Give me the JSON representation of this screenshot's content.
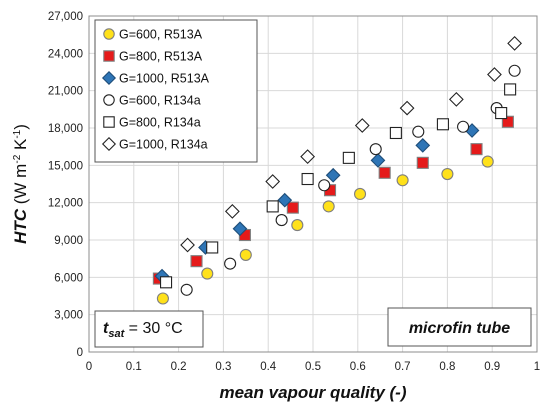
{
  "chart_data": {
    "type": "scatter",
    "xlabel": "mean vapour quality (-)",
    "ylabel": {
      "main": "HTC",
      "unit_prefix": " (W m",
      "sup1": "-2",
      "unit_mid": " K",
      "sup2": "-1",
      "unit_suffix": ")"
    },
    "xlim": [
      0,
      1
    ],
    "ylim": [
      0,
      27000
    ],
    "x_ticks": [
      "0",
      "0.1",
      "0.2",
      "0.3",
      "0.4",
      "0.5",
      "0.6",
      "0.7",
      "0.8",
      "0.9",
      "1"
    ],
    "y_ticks": [
      "0",
      "3,000",
      "6,000",
      "9,000",
      "12,000",
      "15,000",
      "18,000",
      "21,000",
      "24,000",
      "27,000"
    ],
    "grid": true,
    "legend_position": "top-left",
    "annotations": {
      "tsat_symbol": "t",
      "tsat_sub": "sat",
      "tsat_value": " = 30 °C",
      "tube": "microfin tube"
    },
    "series": [
      {
        "name": "G=600, R513A",
        "marker": "circle",
        "fill": "#FFE11A",
        "stroke": "#7F7F7F",
        "x": [
          0.165,
          0.264,
          0.35,
          0.465,
          0.535,
          0.605,
          0.7,
          0.8,
          0.89
        ],
        "y": [
          4300,
          6300,
          7800,
          10200,
          11700,
          12700,
          13800,
          14300,
          15300
        ]
      },
      {
        "name": "G=800, R513A",
        "marker": "square",
        "fill": "#E51A1A",
        "stroke": "#7F7F7F",
        "x": [
          0.156,
          0.24,
          0.348,
          0.455,
          0.538,
          0.66,
          0.745,
          0.865,
          0.935
        ],
        "y": [
          5900,
          7300,
          9400,
          11600,
          13000,
          14400,
          15200,
          16300,
          18500
        ]
      },
      {
        "name": "G=1000, R513A",
        "marker": "diamond",
        "fill": "#2E75B6",
        "stroke": "#1F4E79",
        "x": [
          0.163,
          0.26,
          0.337,
          0.437,
          0.545,
          0.645,
          0.745,
          0.855
        ],
        "y": [
          6100,
          8400,
          9900,
          12200,
          14200,
          15400,
          16600,
          17800
        ]
      },
      {
        "name": "G=600, R134a",
        "marker": "circle",
        "fill": "#FFFFFF",
        "stroke": "#222222",
        "x": [
          0.218,
          0.315,
          0.43,
          0.525,
          0.64,
          0.735,
          0.835,
          0.91,
          0.95
        ],
        "y": [
          5000,
          7100,
          10600,
          13400,
          16300,
          17700,
          18100,
          19600,
          22600
        ]
      },
      {
        "name": "G=800, R134a",
        "marker": "square",
        "fill": "#FFFFFF",
        "stroke": "#222222",
        "x": [
          0.172,
          0.275,
          0.41,
          0.488,
          0.58,
          0.685,
          0.79,
          0.92,
          0.94
        ],
        "y": [
          5600,
          8400,
          11700,
          13900,
          15600,
          17600,
          18300,
          19200,
          21100
        ]
      },
      {
        "name": "G=1000, R134a",
        "marker": "diamond",
        "fill": "#FFFFFF",
        "stroke": "#222222",
        "x": [
          0.22,
          0.32,
          0.41,
          0.488,
          0.61,
          0.71,
          0.82,
          0.905,
          0.95
        ],
        "y": [
          8600,
          11300,
          13700,
          15700,
          18200,
          19600,
          20300,
          22300,
          24800
        ]
      }
    ]
  }
}
